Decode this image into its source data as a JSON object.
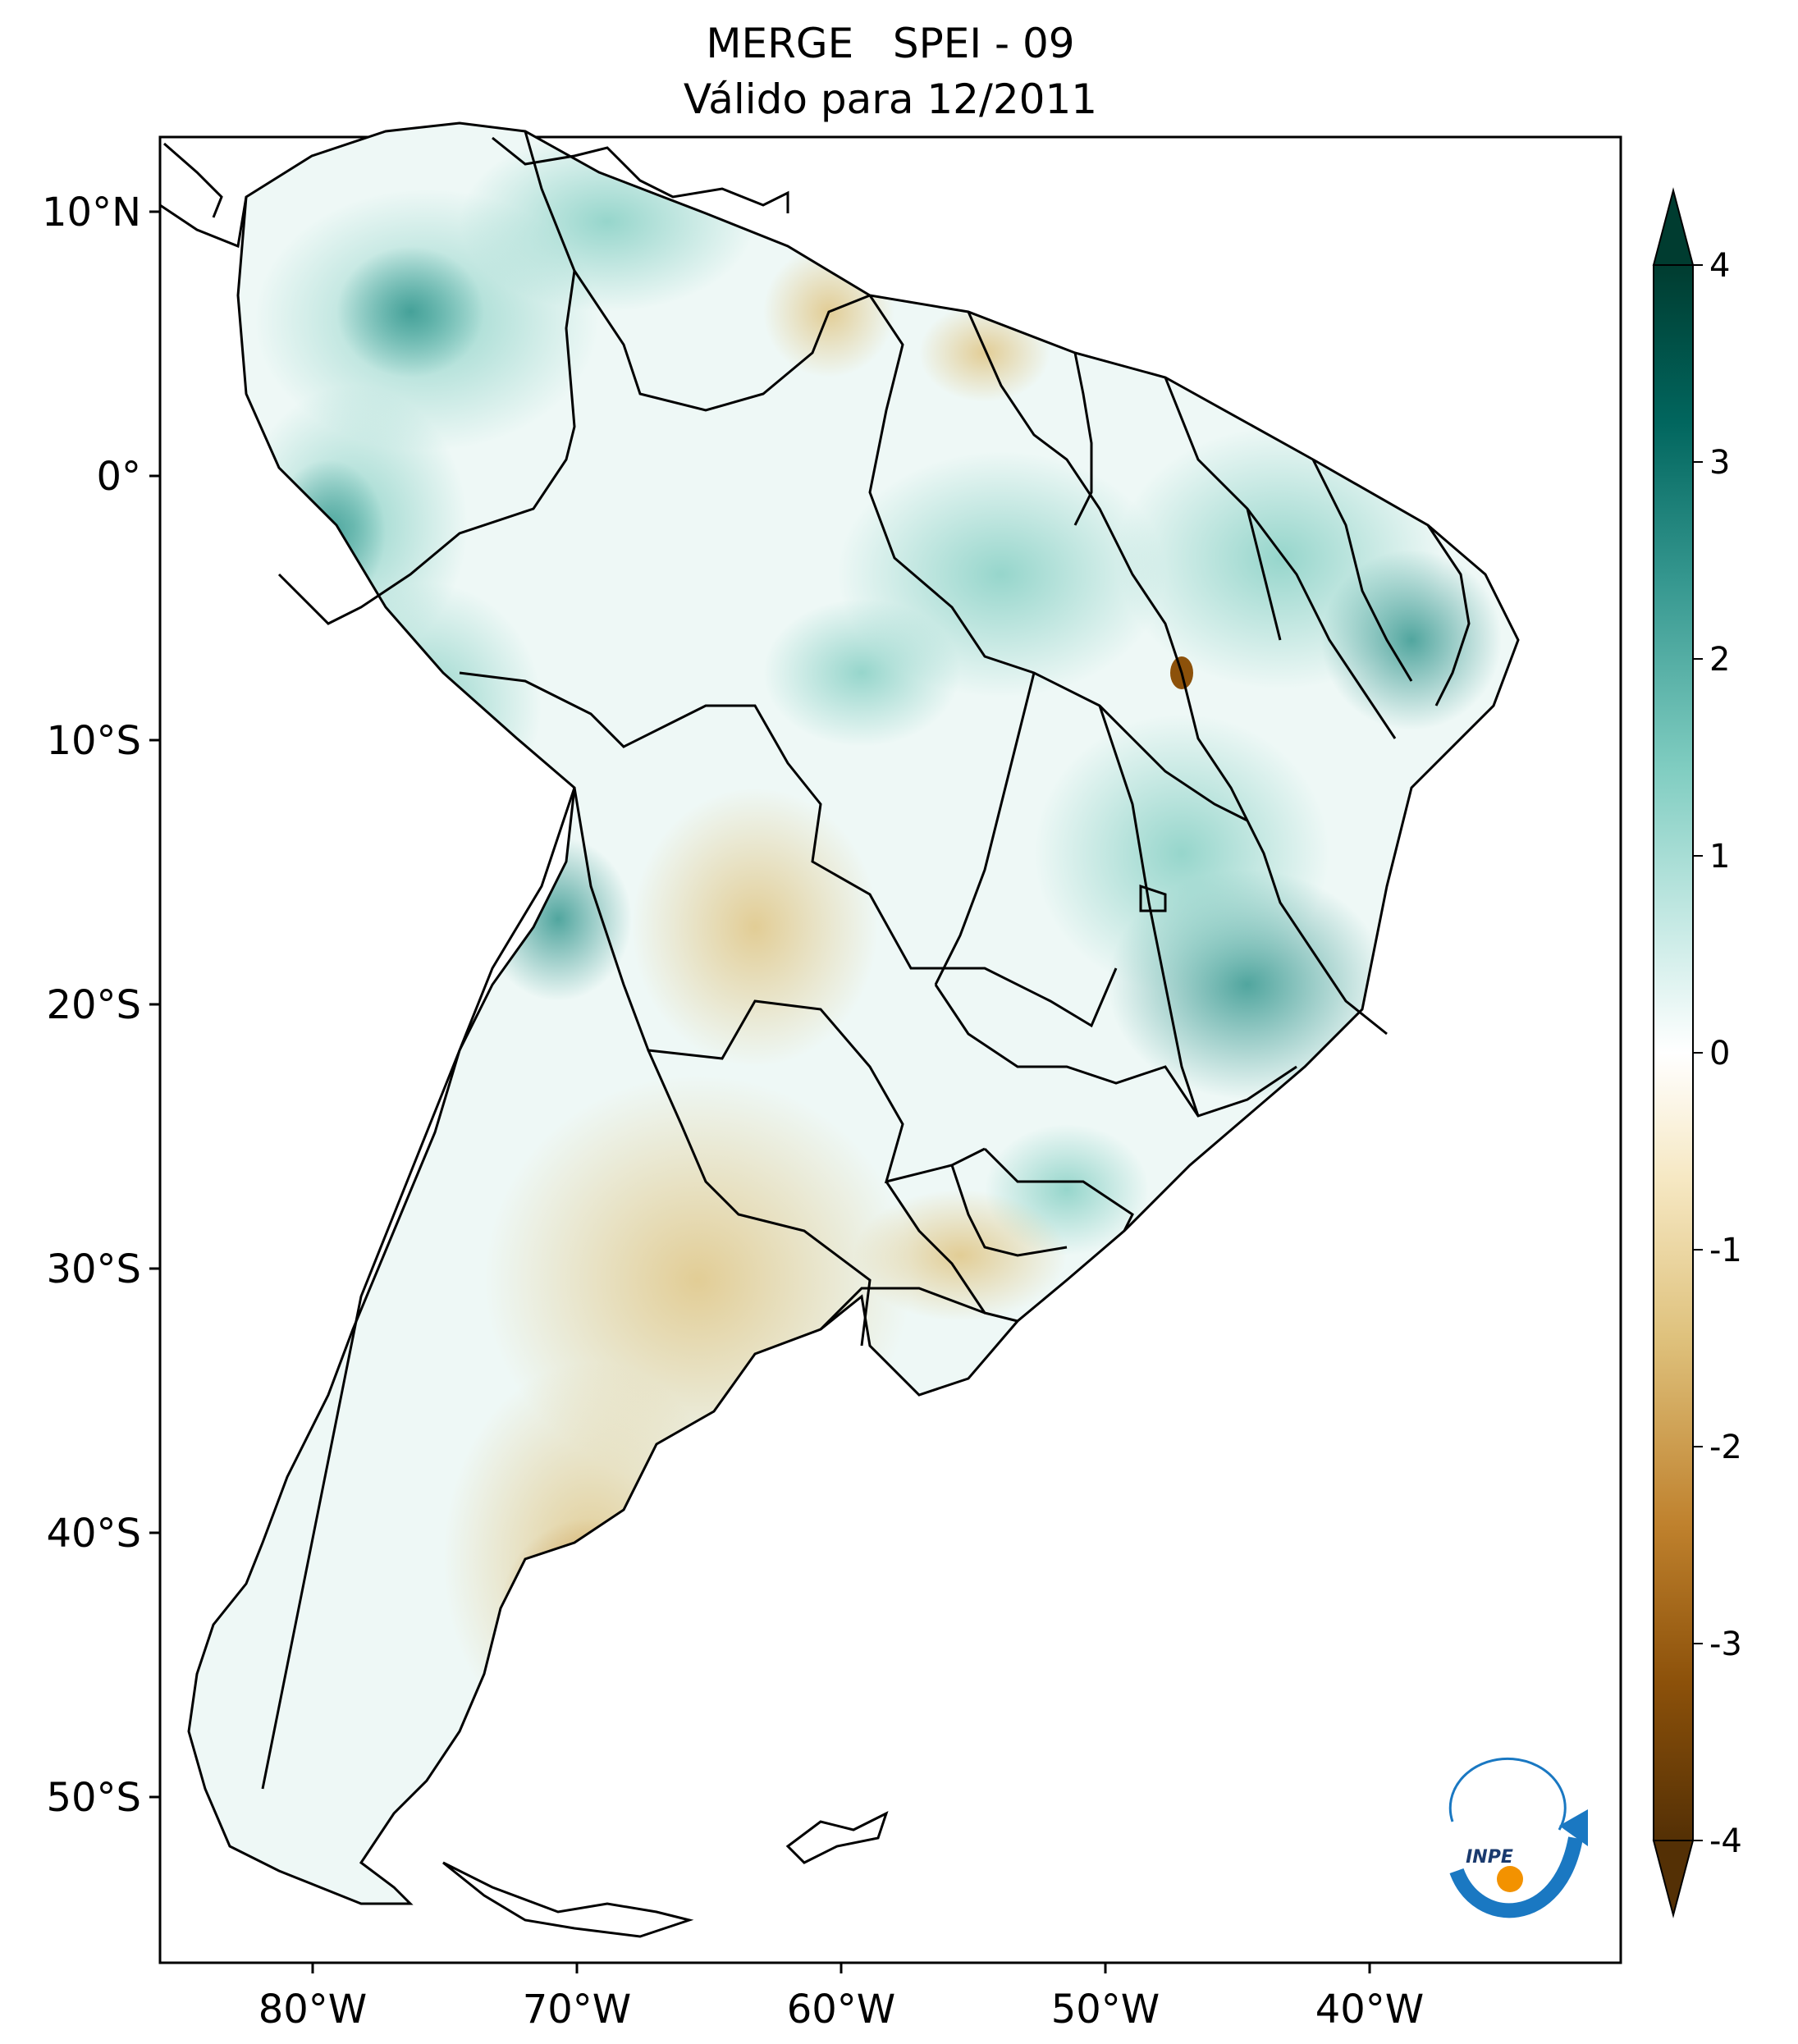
{
  "title": {
    "line1": "MERGE   SPEI - 09",
    "line2": "Válido para 12/2011"
  },
  "map": {
    "lon_range": [
      -85,
      -30
    ],
    "lat_range": [
      -56,
      13
    ],
    "lon_ticks": [
      {
        "value": -80,
        "label": "80°W"
      },
      {
        "value": -70,
        "label": "70°W"
      },
      {
        "value": -60,
        "label": "60°W"
      },
      {
        "value": -50,
        "label": "50°W"
      },
      {
        "value": -40,
        "label": "40°W"
      }
    ],
    "lat_ticks": [
      {
        "value": 10,
        "label": "10°N"
      },
      {
        "value": 0,
        "label": "0°"
      },
      {
        "value": -10,
        "label": "10°S"
      },
      {
        "value": -20,
        "label": "20°S"
      },
      {
        "value": -30,
        "label": "30°S"
      },
      {
        "value": -40,
        "label": "40°S"
      },
      {
        "value": -50,
        "label": "50°S"
      }
    ]
  },
  "colorbar": {
    "min": -4,
    "max": 4,
    "extend": "both",
    "ticks": [
      {
        "value": 4,
        "label": "4"
      },
      {
        "value": 3,
        "label": "3"
      },
      {
        "value": 2,
        "label": "2"
      },
      {
        "value": 1,
        "label": "1"
      },
      {
        "value": 0,
        "label": "0"
      },
      {
        "value": -1,
        "label": "-1"
      },
      {
        "value": -2,
        "label": "-2"
      },
      {
        "value": -3,
        "label": "-3"
      },
      {
        "value": -4,
        "label": "-4"
      }
    ],
    "colors": [
      "#543005",
      "#8c510a",
      "#bf812d",
      "#dfc27d",
      "#f6e8c3",
      "#ffffff",
      "#c7eae5",
      "#80cdc1",
      "#35978f",
      "#01665e",
      "#003c30"
    ]
  },
  "logo": {
    "text": "INPE",
    "blue": "#1a78c2",
    "orange": "#f39200"
  }
}
